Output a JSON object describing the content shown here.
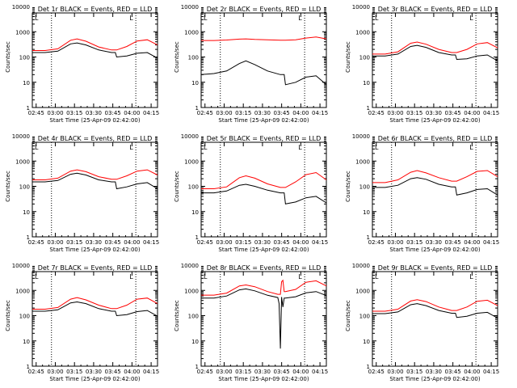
{
  "x_ticks": [
    "02:45",
    "03:00",
    "03:15",
    "03:30",
    "03:45",
    "04:00",
    "04:15"
  ],
  "x_label": "Start Time (25-Apr-09 02:42:00)",
  "y_label": "Counts/sec",
  "y_ticks": [
    "1",
    "10",
    "100",
    "1000",
    "10000"
  ],
  "marker_label": "L",
  "colors": {
    "events": "#000000",
    "lld": "#ff0000",
    "background": "#ffffff"
  },
  "chart_data": [
    {
      "type": "line",
      "title": "Det 1r BLACK = Events, RED = LLD",
      "xlim": [
        "02:42",
        "04:20"
      ],
      "ylim": [
        1,
        10000
      ],
      "log_y": true,
      "x": [
        "02:42",
        "02:52",
        "03:02",
        "03:12",
        "03:17",
        "03:24",
        "03:34",
        "03:44",
        "03:47",
        "03:48",
        "03:56",
        "04:04",
        "04:12",
        "04:20"
      ],
      "series": [
        {
          "values": [
            150,
            150,
            170,
            330,
            360,
            300,
            190,
            150,
            150,
            100,
            110,
            140,
            150,
            90
          ]
        },
        {
          "values": [
            180,
            180,
            210,
            460,
            520,
            420,
            250,
            190,
            190,
            190,
            260,
            430,
            480,
            300
          ]
        }
      ]
    },
    {
      "type": "line",
      "title": "Det 2r BLACK = Events, RED = LLD",
      "xlim": [
        "02:42",
        "04:20"
      ],
      "ylim": [
        1,
        10000
      ],
      "log_y": true,
      "x": [
        "02:42",
        "02:52",
        "03:02",
        "03:12",
        "03:17",
        "03:24",
        "03:34",
        "03:44",
        "03:47",
        "03:48",
        "03:56",
        "04:04",
        "04:12",
        "04:20"
      ],
      "series": [
        {
          "values": [
            20,
            22,
            28,
            55,
            70,
            50,
            28,
            20,
            20,
            8,
            10,
            16,
            18,
            8
          ]
        },
        {
          "values": [
            450,
            450,
            470,
            510,
            520,
            500,
            480,
            460,
            460,
            460,
            480,
            560,
            620,
            520
          ]
        }
      ]
    },
    {
      "type": "line",
      "title": "Det 3r BLACK = Events, RED = LLD",
      "xlim": [
        "02:42",
        "04:20"
      ],
      "ylim": [
        1,
        10000
      ],
      "log_y": true,
      "x": [
        "02:42",
        "02:52",
        "03:02",
        "03:12",
        "03:17",
        "03:24",
        "03:34",
        "03:44",
        "03:47",
        "03:48",
        "03:56",
        "04:04",
        "04:12",
        "04:20"
      ],
      "series": [
        {
          "values": [
            110,
            110,
            130,
            260,
            290,
            240,
            150,
            120,
            120,
            80,
            85,
            110,
            120,
            70
          ]
        },
        {
          "values": [
            130,
            130,
            160,
            350,
            390,
            320,
            200,
            150,
            150,
            150,
            200,
            330,
            370,
            230
          ]
        }
      ]
    },
    {
      "type": "line",
      "title": "Det 4r BLACK = Events, RED = LLD",
      "xlim": [
        "02:42",
        "04:20"
      ],
      "ylim": [
        1,
        10000
      ],
      "log_y": true,
      "x": [
        "02:42",
        "02:52",
        "03:02",
        "03:12",
        "03:17",
        "03:24",
        "03:34",
        "03:44",
        "03:47",
        "03:48",
        "03:56",
        "04:04",
        "04:12",
        "04:20"
      ],
      "series": [
        {
          "values": [
            150,
            150,
            170,
            300,
            330,
            280,
            180,
            150,
            150,
            80,
            95,
            125,
            140,
            80
          ]
        },
        {
          "values": [
            180,
            180,
            210,
            400,
            450,
            380,
            240,
            190,
            190,
            190,
            260,
            400,
            450,
            280
          ]
        }
      ]
    },
    {
      "type": "line",
      "title": "Det 5r BLACK = Events, RED = LLD",
      "xlim": [
        "02:42",
        "04:20"
      ],
      "ylim": [
        1,
        10000
      ],
      "log_y": true,
      "x": [
        "02:42",
        "02:52",
        "03:02",
        "03:12",
        "03:17",
        "03:24",
        "03:34",
        "03:44",
        "03:47",
        "03:48",
        "03:56",
        "04:04",
        "04:12",
        "04:20"
      ],
      "series": [
        {
          "values": [
            55,
            55,
            65,
            110,
            120,
            100,
            70,
            55,
            55,
            20,
            24,
            35,
            40,
            22
          ]
        },
        {
          "values": [
            80,
            80,
            95,
            220,
            260,
            210,
            125,
            90,
            90,
            90,
            150,
            290,
            350,
            180
          ]
        }
      ]
    },
    {
      "type": "line",
      "title": "Det 6r BLACK = Events, RED = LLD",
      "xlim": [
        "02:42",
        "04:20"
      ],
      "ylim": [
        1,
        10000
      ],
      "log_y": true,
      "x": [
        "02:42",
        "02:52",
        "03:02",
        "03:12",
        "03:17",
        "03:24",
        "03:34",
        "03:44",
        "03:47",
        "03:48",
        "03:56",
        "04:04",
        "04:12",
        "04:20"
      ],
      "series": [
        {
          "values": [
            90,
            90,
            110,
            200,
            220,
            190,
            120,
            95,
            95,
            45,
            55,
            75,
            80,
            45
          ]
        },
        {
          "values": [
            140,
            140,
            180,
            360,
            420,
            340,
            220,
            160,
            160,
            160,
            240,
            390,
            420,
            240
          ]
        }
      ]
    },
    {
      "type": "line",
      "title": "Det 7r BLACK = Events, RED = LLD",
      "xlim": [
        "02:42",
        "04:20"
      ],
      "ylim": [
        1,
        10000
      ],
      "log_y": true,
      "x": [
        "02:42",
        "02:52",
        "03:02",
        "03:12",
        "03:17",
        "03:24",
        "03:34",
        "03:44",
        "03:47",
        "03:48",
        "03:56",
        "04:04",
        "04:12",
        "04:20"
      ],
      "series": [
        {
          "values": [
            150,
            150,
            170,
            320,
            350,
            300,
            190,
            150,
            150,
            100,
            110,
            145,
            160,
            95
          ]
        },
        {
          "values": [
            180,
            180,
            210,
            450,
            520,
            420,
            260,
            190,
            190,
            190,
            260,
            450,
            500,
            300
          ]
        }
      ]
    },
    {
      "type": "line",
      "title": "Det 8r BLACK = Events, RED = LLD",
      "xlim": [
        "02:42",
        "04:20"
      ],
      "ylim": [
        1,
        10000
      ],
      "log_y": true,
      "x": [
        "02:42",
        "02:52",
        "03:02",
        "03:12",
        "03:17",
        "03:24",
        "03:34",
        "03:42",
        "03:43",
        "03:44",
        "03:45",
        "03:46",
        "03:47",
        "03:48",
        "03:56",
        "04:04",
        "04:12",
        "04:20"
      ],
      "series": [
        {
          "values": [
            500,
            500,
            600,
            1050,
            1150,
            960,
            640,
            520,
            300,
            5,
            550,
            220,
            500,
            500,
            560,
            800,
            900,
            620
          ]
        },
        {
          "values": [
            650,
            650,
            780,
            1500,
            1650,
            1400,
            900,
            700,
            700,
            700,
            2200,
            2500,
            900,
            900,
            1100,
            2100,
            2400,
            1500
          ]
        }
      ]
    },
    {
      "type": "line",
      "title": "Det 9r BLACK = Events, RED = LLD",
      "xlim": [
        "02:42",
        "04:20"
      ],
      "ylim": [
        1,
        10000
      ],
      "log_y": true,
      "x": [
        "02:42",
        "02:52",
        "03:02",
        "03:12",
        "03:17",
        "03:24",
        "03:34",
        "03:44",
        "03:47",
        "03:48",
        "03:56",
        "04:04",
        "04:12",
        "04:20"
      ],
      "series": [
        {
          "values": [
            120,
            120,
            140,
            270,
            300,
            250,
            160,
            125,
            125,
            85,
            95,
            125,
            135,
            80
          ]
        },
        {
          "values": [
            150,
            150,
            180,
            380,
            430,
            360,
            220,
            160,
            160,
            160,
            220,
            370,
            410,
            250
          ]
        }
      ]
    }
  ]
}
